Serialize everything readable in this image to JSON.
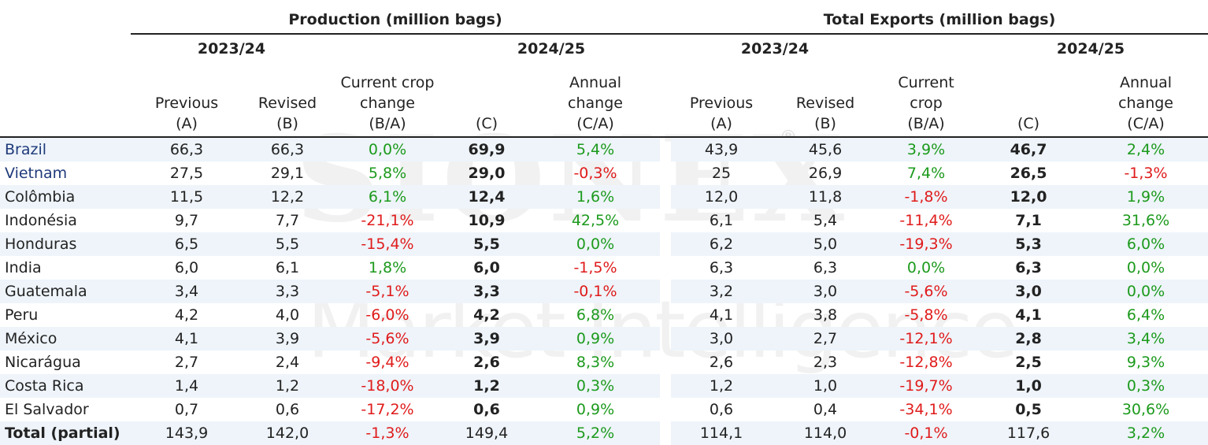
{
  "headers": {
    "production": "Production  (million bags)",
    "exports": "Total Exports (million bags)",
    "year_prev": "2023/24",
    "year_curr": "2024/25",
    "prod_cols": [
      [
        "Previous",
        "(A)"
      ],
      [
        "Revised",
        "(B)"
      ],
      [
        "Current crop",
        "change",
        "(B/A)"
      ],
      [
        "(C)"
      ],
      [
        "Annual",
        "change",
        "(C/A)"
      ]
    ],
    "exp_cols": [
      [
        "Previous",
        "(A)"
      ],
      [
        "Revised",
        "(B)"
      ],
      [
        "Current",
        "crop",
        "(B/A)"
      ],
      [
        "(C)"
      ],
      [
        "Annual",
        "change",
        "(C/A)"
      ]
    ]
  },
  "rows": [
    {
      "country": "Brazil",
      "blue": true,
      "p": [
        "66,3",
        "66,3",
        "0,0%",
        "69,9",
        "5,4%"
      ],
      "e": [
        "43,9",
        "45,6",
        "3,9%",
        "46,7",
        "2,4%"
      ]
    },
    {
      "country": "Vietnam",
      "blue": true,
      "p": [
        "27,5",
        "29,1",
        "5,8%",
        "29,0",
        "-0,3%"
      ],
      "e": [
        "25",
        "26,9",
        "7,4%",
        "26,5",
        "-1,3%"
      ]
    },
    {
      "country": "Colômbia",
      "p": [
        "11,5",
        "12,2",
        "6,1%",
        "12,4",
        "1,6%"
      ],
      "e": [
        "12,0",
        "11,8",
        "-1,8%",
        "12,0",
        "1,9%"
      ]
    },
    {
      "country": "Indonésia",
      "p": [
        "9,7",
        "7,7",
        "-21,1%",
        "10,9",
        "42,5%"
      ],
      "e": [
        "6,1",
        "5,4",
        "-11,4%",
        "7,1",
        "31,6%"
      ]
    },
    {
      "country": "Honduras",
      "p": [
        "6,5",
        "5,5",
        "-15,4%",
        "5,5",
        "0,0%"
      ],
      "e": [
        "6,2",
        "5,0",
        "-19,3%",
        "5,3",
        "6,0%"
      ]
    },
    {
      "country": "India",
      "p": [
        "6,0",
        "6,1",
        "1,8%",
        "6,0",
        "-1,5%"
      ],
      "e": [
        "6,3",
        "6,3",
        "0,0%",
        "6,3",
        "0,0%"
      ]
    },
    {
      "country": "Guatemala",
      "p": [
        "3,4",
        "3,3",
        "-5,1%",
        "3,3",
        "-0,1%"
      ],
      "e": [
        "3,2",
        "3,0",
        "-5,6%",
        "3,0",
        "0,0%"
      ]
    },
    {
      "country": "Peru",
      "p": [
        "4,2",
        "4,0",
        "-6,0%",
        "4,2",
        "6,8%"
      ],
      "e": [
        "4,1",
        "3,8",
        "-5,8%",
        "4,1",
        "6,4%"
      ]
    },
    {
      "country": "México",
      "p": [
        "4,1",
        "3,9",
        "-5,6%",
        "3,9",
        "0,9%"
      ],
      "e": [
        "3,0",
        "2,7",
        "-12,1%",
        "2,8",
        "3,4%"
      ]
    },
    {
      "country": "Nicarágua",
      "p": [
        "2,7",
        "2,4",
        "-9,4%",
        "2,6",
        "8,3%"
      ],
      "e": [
        "2,6",
        "2,3",
        "-12,8%",
        "2,5",
        "9,3%"
      ]
    },
    {
      "country": "Costa Rica",
      "p": [
        "1,4",
        "1,2",
        "-18,0%",
        "1,2",
        "0,3%"
      ],
      "e": [
        "1,2",
        "1,0",
        "-19,7%",
        "1,0",
        "0,3%"
      ]
    },
    {
      "country": "El Salvador",
      "p": [
        "0,7",
        "0,6",
        "-17,2%",
        "0,6",
        "0,9%"
      ],
      "e": [
        "0,6",
        "0,4",
        "-34,1%",
        "0,5",
        "30,6%"
      ]
    },
    {
      "country": "Total (partial)",
      "total": true,
      "p": [
        "143,9",
        "142,0",
        "-1,3%",
        "149,4",
        "5,2%"
      ],
      "e": [
        "114,1",
        "114,0",
        "-0,1%",
        "117,6",
        "3,2%"
      ]
    }
  ],
  "colors": {
    "positive": "#1c9a1c",
    "negative": "#e01b1b",
    "row_shade": "#eef4fa",
    "country_blue": "#1f3a7a"
  }
}
